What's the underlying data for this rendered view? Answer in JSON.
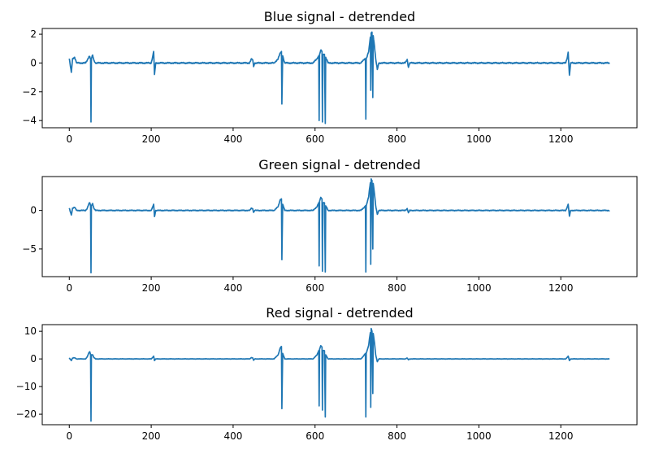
{
  "chart_data": [
    {
      "type": "line",
      "title": "Blue signal - detrended",
      "xlim": [
        -66,
        1386
      ],
      "ylim": [
        -4.5,
        2.4
      ],
      "xticks": [
        0,
        200,
        400,
        600,
        800,
        1000,
        1200
      ],
      "yticks": [
        -4,
        -2,
        0,
        2
      ],
      "color": "#1f77b4",
      "n_points": 1320,
      "base": [
        [
          0,
          0.3
        ],
        [
          5,
          -0.65
        ],
        [
          8,
          0.3
        ],
        [
          13,
          0.4
        ],
        [
          18,
          0.0
        ],
        [
          40,
          0.0
        ],
        [
          44,
          0.2
        ],
        [
          48,
          0.45
        ],
        [
          50,
          0.45
        ],
        [
          52,
          0.3
        ],
        [
          53,
          -4.1
        ],
        [
          54,
          0.3
        ],
        [
          57,
          0.55
        ],
        [
          60,
          0.2
        ],
        [
          64,
          0.0
        ],
        [
          200,
          0.0
        ],
        [
          204,
          0.5
        ],
        [
          206,
          0.8
        ],
        [
          208,
          -0.8
        ],
        [
          211,
          0.0
        ],
        [
          440,
          0.0
        ],
        [
          445,
          0.3
        ],
        [
          448,
          0.2
        ],
        [
          450,
          -0.25
        ],
        [
          453,
          0.0
        ],
        [
          500,
          0.0
        ],
        [
          510,
          0.3
        ],
        [
          515,
          0.7
        ],
        [
          518,
          0.8
        ],
        [
          519,
          -2.85
        ],
        [
          521,
          0.5
        ],
        [
          526,
          0.0
        ],
        [
          595,
          0.0
        ],
        [
          605,
          0.3
        ],
        [
          609,
          0.5
        ],
        [
          610,
          -4.0
        ],
        [
          611,
          0.6
        ],
        [
          614,
          0.9
        ],
        [
          617,
          0.8
        ],
        [
          618,
          -4.1
        ],
        [
          619,
          0.6
        ],
        [
          623,
          0.6
        ],
        [
          625,
          -4.2
        ],
        [
          626,
          0.4
        ],
        [
          632,
          0.0
        ],
        [
          712,
          0.0
        ],
        [
          718,
          0.2
        ],
        [
          723,
          0.3
        ],
        [
          724,
          -3.9
        ],
        [
          725,
          0.3
        ],
        [
          728,
          0.55
        ],
        [
          731,
          0.8
        ],
        [
          733,
          1.3
        ],
        [
          735,
          1.8
        ],
        [
          736,
          -1.9
        ],
        [
          737,
          2.1
        ],
        [
          739,
          2.15
        ],
        [
          741,
          -2.4
        ],
        [
          742,
          1.9
        ],
        [
          745,
          1.2
        ],
        [
          748,
          0.3
        ],
        [
          752,
          -0.45
        ],
        [
          756,
          0.0
        ],
        [
          820,
          0.0
        ],
        [
          825,
          0.25
        ],
        [
          828,
          -0.3
        ],
        [
          831,
          0.0
        ],
        [
          1212,
          0.0
        ],
        [
          1216,
          0.4
        ],
        [
          1218,
          0.75
        ],
        [
          1221,
          -0.85
        ],
        [
          1224,
          0.0
        ],
        [
          1319,
          0.0
        ]
      ],
      "noise_amp": 0.05
    },
    {
      "type": "line",
      "title": "Green signal - detrended",
      "xlim": [
        -66,
        1386
      ],
      "ylim": [
        -8.6,
        4.4
      ],
      "xticks": [
        0,
        200,
        400,
        600,
        800,
        1000,
        1200
      ],
      "yticks": [
        -5,
        0
      ],
      "color": "#1f77b4",
      "n_points": 1320,
      "base": [
        [
          0,
          0.3
        ],
        [
          5,
          -0.6
        ],
        [
          8,
          0.3
        ],
        [
          13,
          0.4
        ],
        [
          18,
          0.0
        ],
        [
          40,
          0.0
        ],
        [
          44,
          0.3
        ],
        [
          48,
          0.9
        ],
        [
          50,
          1.0
        ],
        [
          52,
          0.6
        ],
        [
          53,
          -8.1
        ],
        [
          54,
          0.6
        ],
        [
          57,
          0.9
        ],
        [
          60,
          0.3
        ],
        [
          64,
          0.0
        ],
        [
          200,
          0.0
        ],
        [
          204,
          0.5
        ],
        [
          206,
          0.8
        ],
        [
          208,
          -0.8
        ],
        [
          211,
          0.0
        ],
        [
          440,
          0.0
        ],
        [
          445,
          0.3
        ],
        [
          448,
          0.2
        ],
        [
          450,
          -0.25
        ],
        [
          453,
          0.0
        ],
        [
          500,
          0.0
        ],
        [
          510,
          0.5
        ],
        [
          515,
          1.4
        ],
        [
          518,
          1.5
        ],
        [
          519,
          -6.4
        ],
        [
          521,
          0.8
        ],
        [
          526,
          0.0
        ],
        [
          595,
          0.0
        ],
        [
          605,
          0.5
        ],
        [
          609,
          1.0
        ],
        [
          610,
          -7.2
        ],
        [
          611,
          1.2
        ],
        [
          614,
          1.7
        ],
        [
          617,
          1.5
        ],
        [
          618,
          -7.9
        ],
        [
          619,
          1.0
        ],
        [
          623,
          1.0
        ],
        [
          625,
          -8.0
        ],
        [
          626,
          0.6
        ],
        [
          632,
          0.0
        ],
        [
          712,
          0.0
        ],
        [
          718,
          0.3
        ],
        [
          723,
          0.6
        ],
        [
          724,
          -8.0
        ],
        [
          725,
          0.6
        ],
        [
          728,
          1.2
        ],
        [
          731,
          1.8
        ],
        [
          733,
          2.8
        ],
        [
          735,
          3.6
        ],
        [
          736,
          -7.0
        ],
        [
          737,
          4.1
        ],
        [
          739,
          3.9
        ],
        [
          741,
          -5.0
        ],
        [
          742,
          3.5
        ],
        [
          745,
          2.2
        ],
        [
          748,
          0.6
        ],
        [
          752,
          -0.5
        ],
        [
          756,
          0.0
        ],
        [
          820,
          0.0
        ],
        [
          825,
          0.25
        ],
        [
          828,
          -0.3
        ],
        [
          831,
          0.0
        ],
        [
          1212,
          0.0
        ],
        [
          1216,
          0.5
        ],
        [
          1218,
          0.8
        ],
        [
          1221,
          -0.75
        ],
        [
          1224,
          0.0
        ],
        [
          1319,
          0.0
        ]
      ],
      "noise_amp": 0.06
    },
    {
      "type": "line",
      "title": "Red signal - detrended",
      "xlim": [
        -66,
        1386
      ],
      "ylim": [
        -23.8,
        12.4
      ],
      "xticks": [
        0,
        200,
        400,
        600,
        800,
        1000,
        1200
      ],
      "yticks": [
        -20,
        -10,
        0,
        10
      ],
      "color": "#1f77b4",
      "n_points": 1320,
      "base": [
        [
          0,
          0.4
        ],
        [
          5,
          -0.6
        ],
        [
          8,
          0.3
        ],
        [
          13,
          0.4
        ],
        [
          18,
          0.0
        ],
        [
          40,
          0.0
        ],
        [
          44,
          0.8
        ],
        [
          48,
          2.3
        ],
        [
          50,
          2.6
        ],
        [
          52,
          1.5
        ],
        [
          53,
          -22.5
        ],
        [
          54,
          1.5
        ],
        [
          57,
          1.5
        ],
        [
          60,
          0.5
        ],
        [
          64,
          0.0
        ],
        [
          200,
          0.0
        ],
        [
          204,
          0.6
        ],
        [
          206,
          1.0
        ],
        [
          208,
          -0.6
        ],
        [
          211,
          0.0
        ],
        [
          440,
          0.0
        ],
        [
          445,
          0.5
        ],
        [
          448,
          0.3
        ],
        [
          450,
          -0.5
        ],
        [
          453,
          0.0
        ],
        [
          500,
          0.0
        ],
        [
          510,
          1.5
        ],
        [
          515,
          4.0
        ],
        [
          518,
          4.5
        ],
        [
          519,
          -18.0
        ],
        [
          521,
          2.0
        ],
        [
          526,
          0.0
        ],
        [
          595,
          0.0
        ],
        [
          605,
          1.5
        ],
        [
          609,
          3.0
        ],
        [
          610,
          -17.0
        ],
        [
          611,
          3.5
        ],
        [
          614,
          4.8
        ],
        [
          617,
          4.3
        ],
        [
          618,
          -18.5
        ],
        [
          619,
          3.0
        ],
        [
          623,
          3.0
        ],
        [
          625,
          -21.0
        ],
        [
          626,
          1.5
        ],
        [
          632,
          0.0
        ],
        [
          712,
          0.0
        ],
        [
          718,
          1.0
        ],
        [
          723,
          2.0
        ],
        [
          724,
          -21.0
        ],
        [
          725,
          2.0
        ],
        [
          728,
          3.5
        ],
        [
          731,
          5.0
        ],
        [
          733,
          7.5
        ],
        [
          735,
          9.5
        ],
        [
          736,
          -17.5
        ],
        [
          737,
          11.0
        ],
        [
          739,
          10.0
        ],
        [
          741,
          -12.5
        ],
        [
          742,
          9.2
        ],
        [
          745,
          6.0
        ],
        [
          748,
          1.5
        ],
        [
          752,
          -1.0
        ],
        [
          756,
          0.0
        ],
        [
          820,
          0.0
        ],
        [
          825,
          0.3
        ],
        [
          828,
          -0.3
        ],
        [
          831,
          0.0
        ],
        [
          1212,
          0.0
        ],
        [
          1216,
          0.6
        ],
        [
          1218,
          1.0
        ],
        [
          1221,
          -0.6
        ],
        [
          1224,
          0.0
        ],
        [
          1319,
          0.0
        ]
      ],
      "noise_amp": 0.08
    }
  ]
}
